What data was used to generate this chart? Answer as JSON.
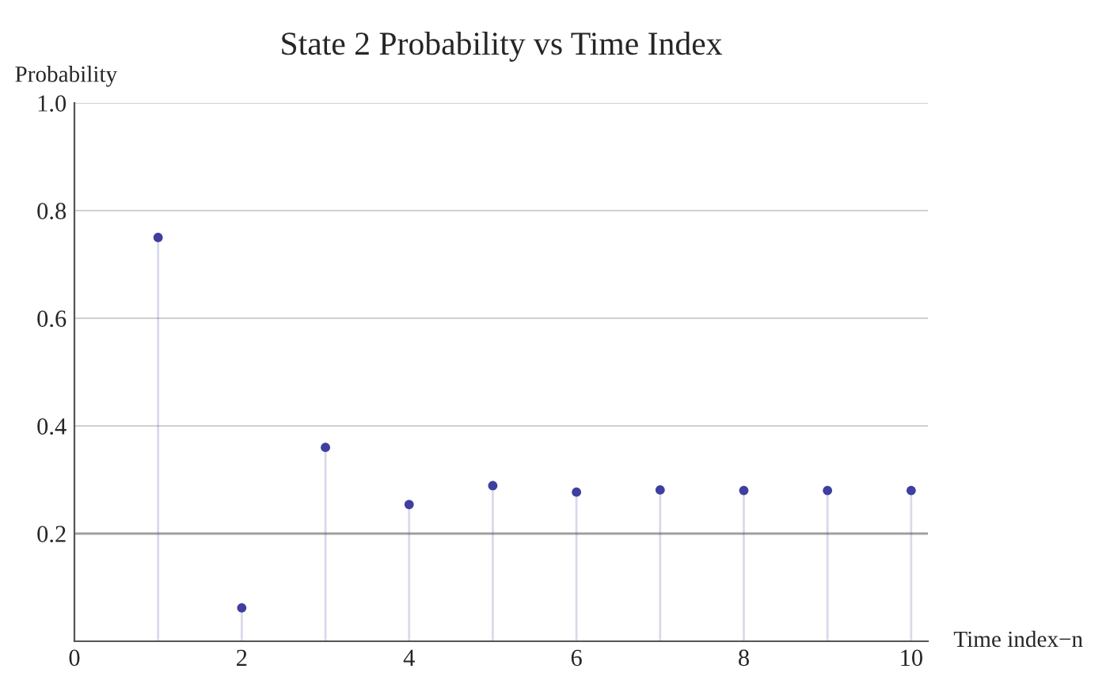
{
  "chart_data": {
    "type": "lollipop",
    "title": "State 2 Probability vs Time Index",
    "xlabel": "Time index−n",
    "ylabel": "Probability",
    "x": [
      1,
      2,
      3,
      4,
      5,
      6,
      7,
      8,
      9,
      10
    ],
    "series": [
      {
        "color": "#3f3fa0",
        "values": [
          0.75,
          0.062,
          0.36,
          0.254,
          0.289,
          0.277,
          0.281,
          0.28,
          0.28,
          0.28
        ]
      }
    ],
    "xlim": [
      0,
      10.2
    ],
    "ylim": [
      0,
      1.0
    ],
    "xticks": [
      0,
      2,
      4,
      6,
      8,
      10
    ],
    "yticks": [
      0.2,
      0.4,
      0.6,
      0.8,
      {
        "value": 1.0,
        "label": "1.0"
      }
    ],
    "grid": "y",
    "marker": "circle",
    "ref_lines": [
      {
        "axis": "y",
        "value": 0.2,
        "label": null,
        "color": "#a0a0a0"
      }
    ]
  }
}
